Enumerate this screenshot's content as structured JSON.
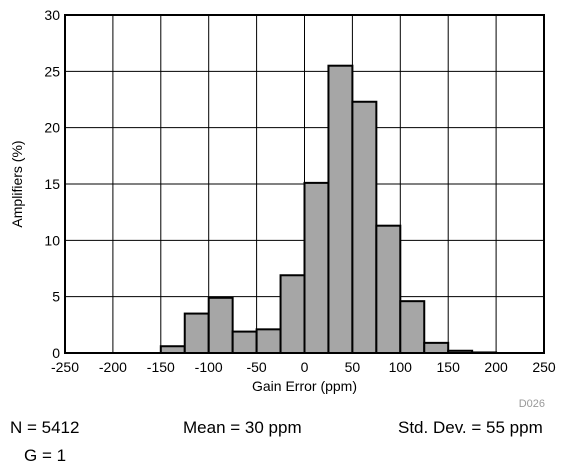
{
  "chart_data": {
    "type": "bar",
    "xlabel": "Gain Error (ppm)",
    "ylabel": "Amplifiers (%)",
    "xlim": [
      -250,
      250
    ],
    "ylim": [
      0,
      30
    ],
    "x_ticks": [
      -250,
      -200,
      -150,
      -100,
      -50,
      0,
      50,
      100,
      150,
      200,
      250
    ],
    "y_ticks": [
      0,
      5,
      10,
      15,
      20,
      25,
      30
    ],
    "bin_width": 25,
    "bins": [
      {
        "x_start": -150,
        "value": 0.6
      },
      {
        "x_start": -125,
        "value": 3.5
      },
      {
        "x_start": -100,
        "value": 4.9
      },
      {
        "x_start": -75,
        "value": 1.9
      },
      {
        "x_start": -50,
        "value": 2.1
      },
      {
        "x_start": -25,
        "value": 6.9
      },
      {
        "x_start": 0,
        "value": 15.1
      },
      {
        "x_start": 25,
        "value": 25.5
      },
      {
        "x_start": 50,
        "value": 22.3
      },
      {
        "x_start": 75,
        "value": 11.3
      },
      {
        "x_start": 100,
        "value": 4.6
      },
      {
        "x_start": 125,
        "value": 0.9
      },
      {
        "x_start": 150,
        "value": 0.2
      },
      {
        "x_start": 175,
        "value": 0.05
      }
    ],
    "grid": true,
    "bar_color": "#a6a6a6",
    "figure_id": "D026"
  },
  "stats": {
    "n": "N = 5412",
    "mean": "Mean = 30 ppm",
    "std": "Std. Dev. = 55 ppm",
    "gain": "G = 1"
  }
}
